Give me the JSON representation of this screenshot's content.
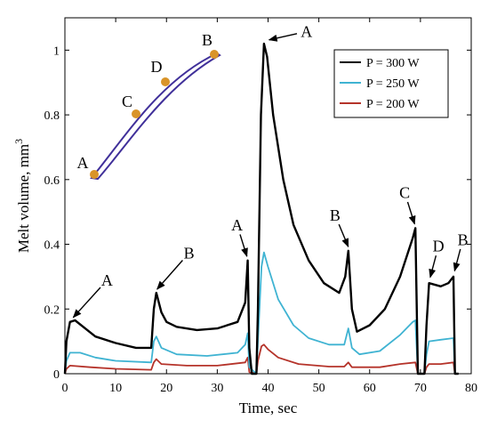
{
  "chart_data": {
    "type": "line",
    "title": "",
    "xlabel": "Time, sec",
    "ylabel": "Melt volume, mm",
    "ylabel_sup": "3",
    "xlim": [
      0,
      80
    ],
    "ylim": [
      0,
      1.1
    ],
    "xticks": [
      "0",
      "10",
      "20",
      "30",
      "40",
      "50",
      "60",
      "70",
      "80"
    ],
    "yticks": [
      "0",
      "0.2",
      "0.4",
      "0.6",
      "0.8",
      "1"
    ],
    "grid": false,
    "legend_position": "top-right",
    "series": [
      {
        "name": "P = 300 W",
        "color": "#000000",
        "points": [
          [
            0,
            0
          ],
          [
            0.3,
            0.1
          ],
          [
            1,
            0.16
          ],
          [
            2,
            0.165
          ],
          [
            4,
            0.14
          ],
          [
            6,
            0.115
          ],
          [
            10,
            0.095
          ],
          [
            14,
            0.08
          ],
          [
            17,
            0.08
          ],
          [
            17.5,
            0.2
          ],
          [
            18,
            0.25
          ],
          [
            19,
            0.19
          ],
          [
            20,
            0.16
          ],
          [
            22,
            0.145
          ],
          [
            26,
            0.135
          ],
          [
            30,
            0.14
          ],
          [
            34,
            0.16
          ],
          [
            35.5,
            0.22
          ],
          [
            36,
            0.35
          ],
          [
            36.3,
            0.08
          ],
          [
            36.8,
            0.0
          ],
          [
            37.7,
            0.0
          ],
          [
            38,
            0.2
          ],
          [
            38.6,
            0.8
          ],
          [
            39.2,
            1.02
          ],
          [
            39.8,
            0.98
          ],
          [
            41,
            0.8
          ],
          [
            43,
            0.6
          ],
          [
            45,
            0.46
          ],
          [
            48,
            0.35
          ],
          [
            51,
            0.28
          ],
          [
            54,
            0.25
          ],
          [
            55.2,
            0.3
          ],
          [
            55.8,
            0.38
          ],
          [
            56.5,
            0.2
          ],
          [
            57.5,
            0.13
          ],
          [
            60,
            0.15
          ],
          [
            63,
            0.2
          ],
          [
            66,
            0.3
          ],
          [
            68.5,
            0.42
          ],
          [
            69,
            0.45
          ],
          [
            69.5,
            0.0
          ],
          [
            70.8,
            0.0
          ],
          [
            71.2,
            0.15
          ],
          [
            71.7,
            0.28
          ],
          [
            74,
            0.27
          ],
          [
            75.5,
            0.28
          ],
          [
            76.5,
            0.3
          ],
          [
            76.8,
            0.0
          ],
          [
            77.5,
            0.0
          ]
        ]
      },
      {
        "name": "P = 250 W",
        "color": "#3fb3d2",
        "points": [
          [
            0,
            0
          ],
          [
            0.3,
            0.04
          ],
          [
            1,
            0.065
          ],
          [
            3,
            0.065
          ],
          [
            6,
            0.05
          ],
          [
            10,
            0.04
          ],
          [
            17,
            0.035
          ],
          [
            17.5,
            0.1
          ],
          [
            18,
            0.115
          ],
          [
            19,
            0.08
          ],
          [
            22,
            0.06
          ],
          [
            28,
            0.055
          ],
          [
            34,
            0.065
          ],
          [
            35.5,
            0.09
          ],
          [
            36,
            0.125
          ],
          [
            36.3,
            0.02
          ],
          [
            37.7,
            0.0
          ],
          [
            38,
            0.1
          ],
          [
            38.7,
            0.33
          ],
          [
            39.2,
            0.375
          ],
          [
            40,
            0.33
          ],
          [
            42,
            0.23
          ],
          [
            45,
            0.15
          ],
          [
            48,
            0.11
          ],
          [
            52,
            0.09
          ],
          [
            55,
            0.09
          ],
          [
            55.8,
            0.14
          ],
          [
            56.5,
            0.08
          ],
          [
            58,
            0.06
          ],
          [
            62,
            0.07
          ],
          [
            66,
            0.12
          ],
          [
            68.5,
            0.16
          ],
          [
            69,
            0.165
          ],
          [
            69.5,
            0.0
          ],
          [
            70.8,
            0.0
          ],
          [
            71.2,
            0.06
          ],
          [
            71.7,
            0.1
          ],
          [
            74,
            0.105
          ],
          [
            76.5,
            0.11
          ],
          [
            76.8,
            0.0
          ],
          [
            77.5,
            0.0
          ]
        ]
      },
      {
        "name": "P = 200 W",
        "color": "#b5332a",
        "points": [
          [
            0,
            0
          ],
          [
            0.3,
            0.015
          ],
          [
            1,
            0.025
          ],
          [
            5,
            0.02
          ],
          [
            10,
            0.015
          ],
          [
            17,
            0.012
          ],
          [
            17.5,
            0.035
          ],
          [
            18,
            0.045
          ],
          [
            19,
            0.03
          ],
          [
            24,
            0.025
          ],
          [
            30,
            0.025
          ],
          [
            35.5,
            0.035
          ],
          [
            36,
            0.05
          ],
          [
            36.3,
            0.005
          ],
          [
            37.7,
            0.0
          ],
          [
            38,
            0.04
          ],
          [
            38.7,
            0.085
          ],
          [
            39.2,
            0.09
          ],
          [
            40,
            0.075
          ],
          [
            42,
            0.05
          ],
          [
            46,
            0.03
          ],
          [
            52,
            0.022
          ],
          [
            55,
            0.022
          ],
          [
            55.8,
            0.035
          ],
          [
            56.5,
            0.02
          ],
          [
            62,
            0.02
          ],
          [
            66,
            0.03
          ],
          [
            69,
            0.035
          ],
          [
            69.5,
            0.0
          ],
          [
            70.8,
            0.0
          ],
          [
            71.2,
            0.02
          ],
          [
            71.7,
            0.03
          ],
          [
            74,
            0.03
          ],
          [
            76.5,
            0.035
          ],
          [
            76.8,
            0.0
          ],
          [
            77.5,
            0.0
          ]
        ]
      }
    ],
    "annotations": [
      {
        "text": "A",
        "x": 1.3,
        "y": 0.168
      },
      {
        "text": "B",
        "x": 17.8,
        "y": 0.255
      },
      {
        "text": "A",
        "x": 36.0,
        "y": 0.355
      },
      {
        "text": "A",
        "x": 39.7,
        "y": 1.03
      },
      {
        "text": "B",
        "x": 56.0,
        "y": 0.385
      },
      {
        "text": "C",
        "x": 69.0,
        "y": 0.455
      },
      {
        "text": "D",
        "x": 71.8,
        "y": 0.29
      },
      {
        "text": "B",
        "x": 76.6,
        "y": 0.31
      }
    ],
    "inset_labels": [
      "A",
      "C",
      "D",
      "B"
    ],
    "inset_colors": {
      "outline": "#40309a",
      "point": "#d99429"
    }
  }
}
